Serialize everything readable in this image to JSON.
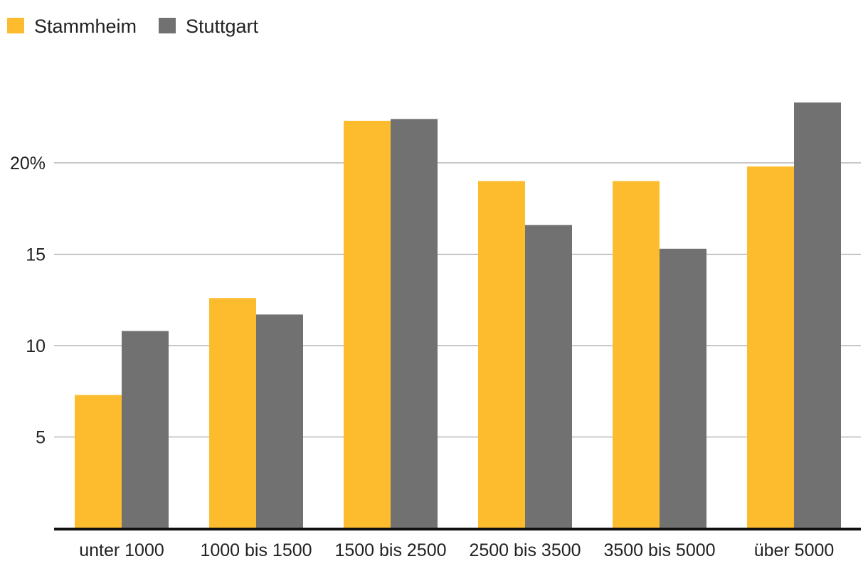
{
  "chart_data": {
    "type": "bar",
    "categories": [
      "unter 1000",
      "1000 bis 1500",
      "1500 bis 2500",
      "2500 bis 3500",
      "3500 bis 5000",
      "über 5000"
    ],
    "series": [
      {
        "name": "Stammheim",
        "color": "#FDBC2D",
        "values": [
          7.3,
          12.6,
          22.3,
          19.0,
          19.0,
          19.8
        ]
      },
      {
        "name": "Stuttgart",
        "color": "#717171",
        "values": [
          10.8,
          11.7,
          22.4,
          16.6,
          15.3,
          23.3
        ]
      }
    ],
    "y_ticks": [
      {
        "value": 5,
        "label": "5"
      },
      {
        "value": 10,
        "label": "10"
      },
      {
        "value": 15,
        "label": "15"
      },
      {
        "value": 20,
        "label": "20%"
      }
    ],
    "ylim": [
      0,
      25
    ],
    "grid": true,
    "legend_position": "top-left",
    "title": "",
    "xlabel": "",
    "ylabel": ""
  }
}
